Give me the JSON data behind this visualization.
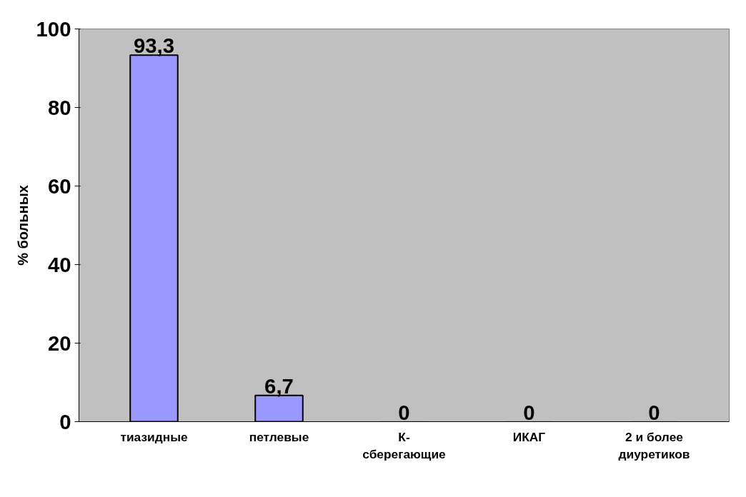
{
  "chart_data": {
    "type": "bar",
    "ylabel": "% больных",
    "categories": [
      "тиазидные",
      "петлевые",
      "К-сберегающие",
      "ИКАГ",
      "2 и более диуретиков"
    ],
    "values": [
      93.3,
      6.7,
      0,
      0,
      0
    ],
    "value_labels": [
      "93,3",
      "6,7",
      "0",
      "0",
      "0"
    ],
    "color": "#9999ff",
    "ylim": [
      0,
      100
    ],
    "yticks": [
      0,
      20,
      40,
      60,
      80,
      100
    ],
    "grid": false
  }
}
